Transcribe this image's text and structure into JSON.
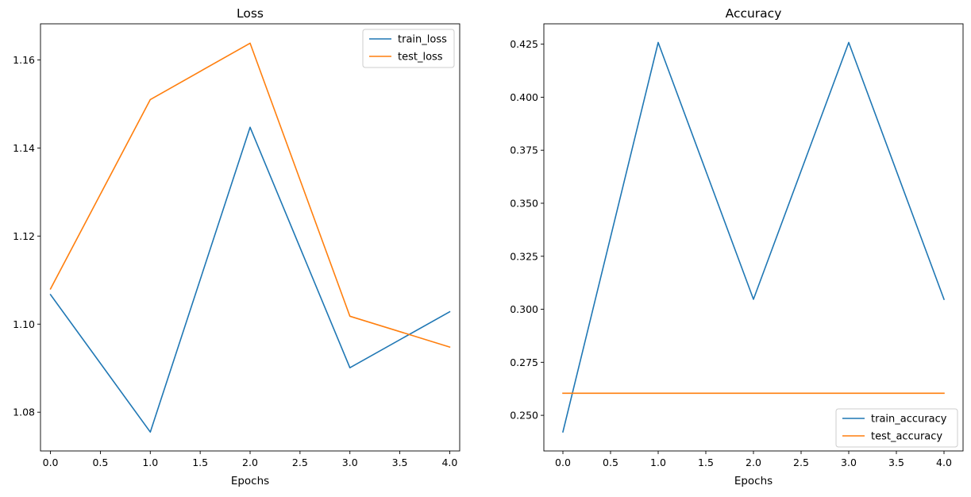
{
  "chart_data": [
    {
      "type": "line",
      "title": "Loss",
      "xlabel": "Epochs",
      "ylabel": "",
      "x": [
        0,
        1,
        2,
        3,
        4
      ],
      "xlim": [
        -0.1,
        4.1
      ],
      "ylim": [
        1.0712,
        1.1682
      ],
      "xticks": [
        0.0,
        0.5,
        1.0,
        1.5,
        2.0,
        2.5,
        3.0,
        3.5,
        4.0
      ],
      "xtick_labels": [
        "0.0",
        "0.5",
        "1.0",
        "1.5",
        "2.0",
        "2.5",
        "3.0",
        "3.5",
        "4.0"
      ],
      "yticks": [
        1.08,
        1.1,
        1.12,
        1.14,
        1.16
      ],
      "ytick_labels": [
        "1.08",
        "1.10",
        "1.12",
        "1.14",
        "1.16"
      ],
      "grid": false,
      "legend_position": "top-right",
      "series": [
        {
          "name": "train_loss",
          "color": "#1f77b4",
          "values": [
            1.1067,
            1.0755,
            1.1447,
            1.0901,
            1.1028
          ]
        },
        {
          "name": "test_loss",
          "color": "#ff7f0e",
          "values": [
            1.108,
            1.151,
            1.1638,
            1.1018,
            1.0948
          ]
        }
      ]
    },
    {
      "type": "line",
      "title": "Accuracy",
      "xlabel": "Epochs",
      "ylabel": "",
      "x": [
        0,
        1,
        2,
        3,
        4
      ],
      "xlim": [
        -0.2,
        4.2
      ],
      "ylim": [
        0.2332,
        0.4346
      ],
      "xticks": [
        0.0,
        0.5,
        1.0,
        1.5,
        2.0,
        2.5,
        3.0,
        3.5,
        4.0
      ],
      "xtick_labels": [
        "0.0",
        "0.5",
        "1.0",
        "1.5",
        "2.0",
        "2.5",
        "3.0",
        "3.5",
        "4.0"
      ],
      "yticks": [
        0.25,
        0.275,
        0.3,
        0.325,
        0.35,
        0.375,
        0.4,
        0.425
      ],
      "ytick_labels": [
        "0.250",
        "0.275",
        "0.300",
        "0.325",
        "0.350",
        "0.375",
        "0.400",
        "0.425"
      ],
      "grid": false,
      "legend_position": "bottom-right",
      "series": [
        {
          "name": "train_accuracy",
          "color": "#1f77b4",
          "values": [
            0.2422,
            0.4258,
            0.3047,
            0.4258,
            0.3047
          ]
        },
        {
          "name": "test_accuracy",
          "color": "#ff7f0e",
          "values": [
            0.2604,
            0.2604,
            0.2604,
            0.2604,
            0.2604
          ]
        }
      ]
    }
  ]
}
